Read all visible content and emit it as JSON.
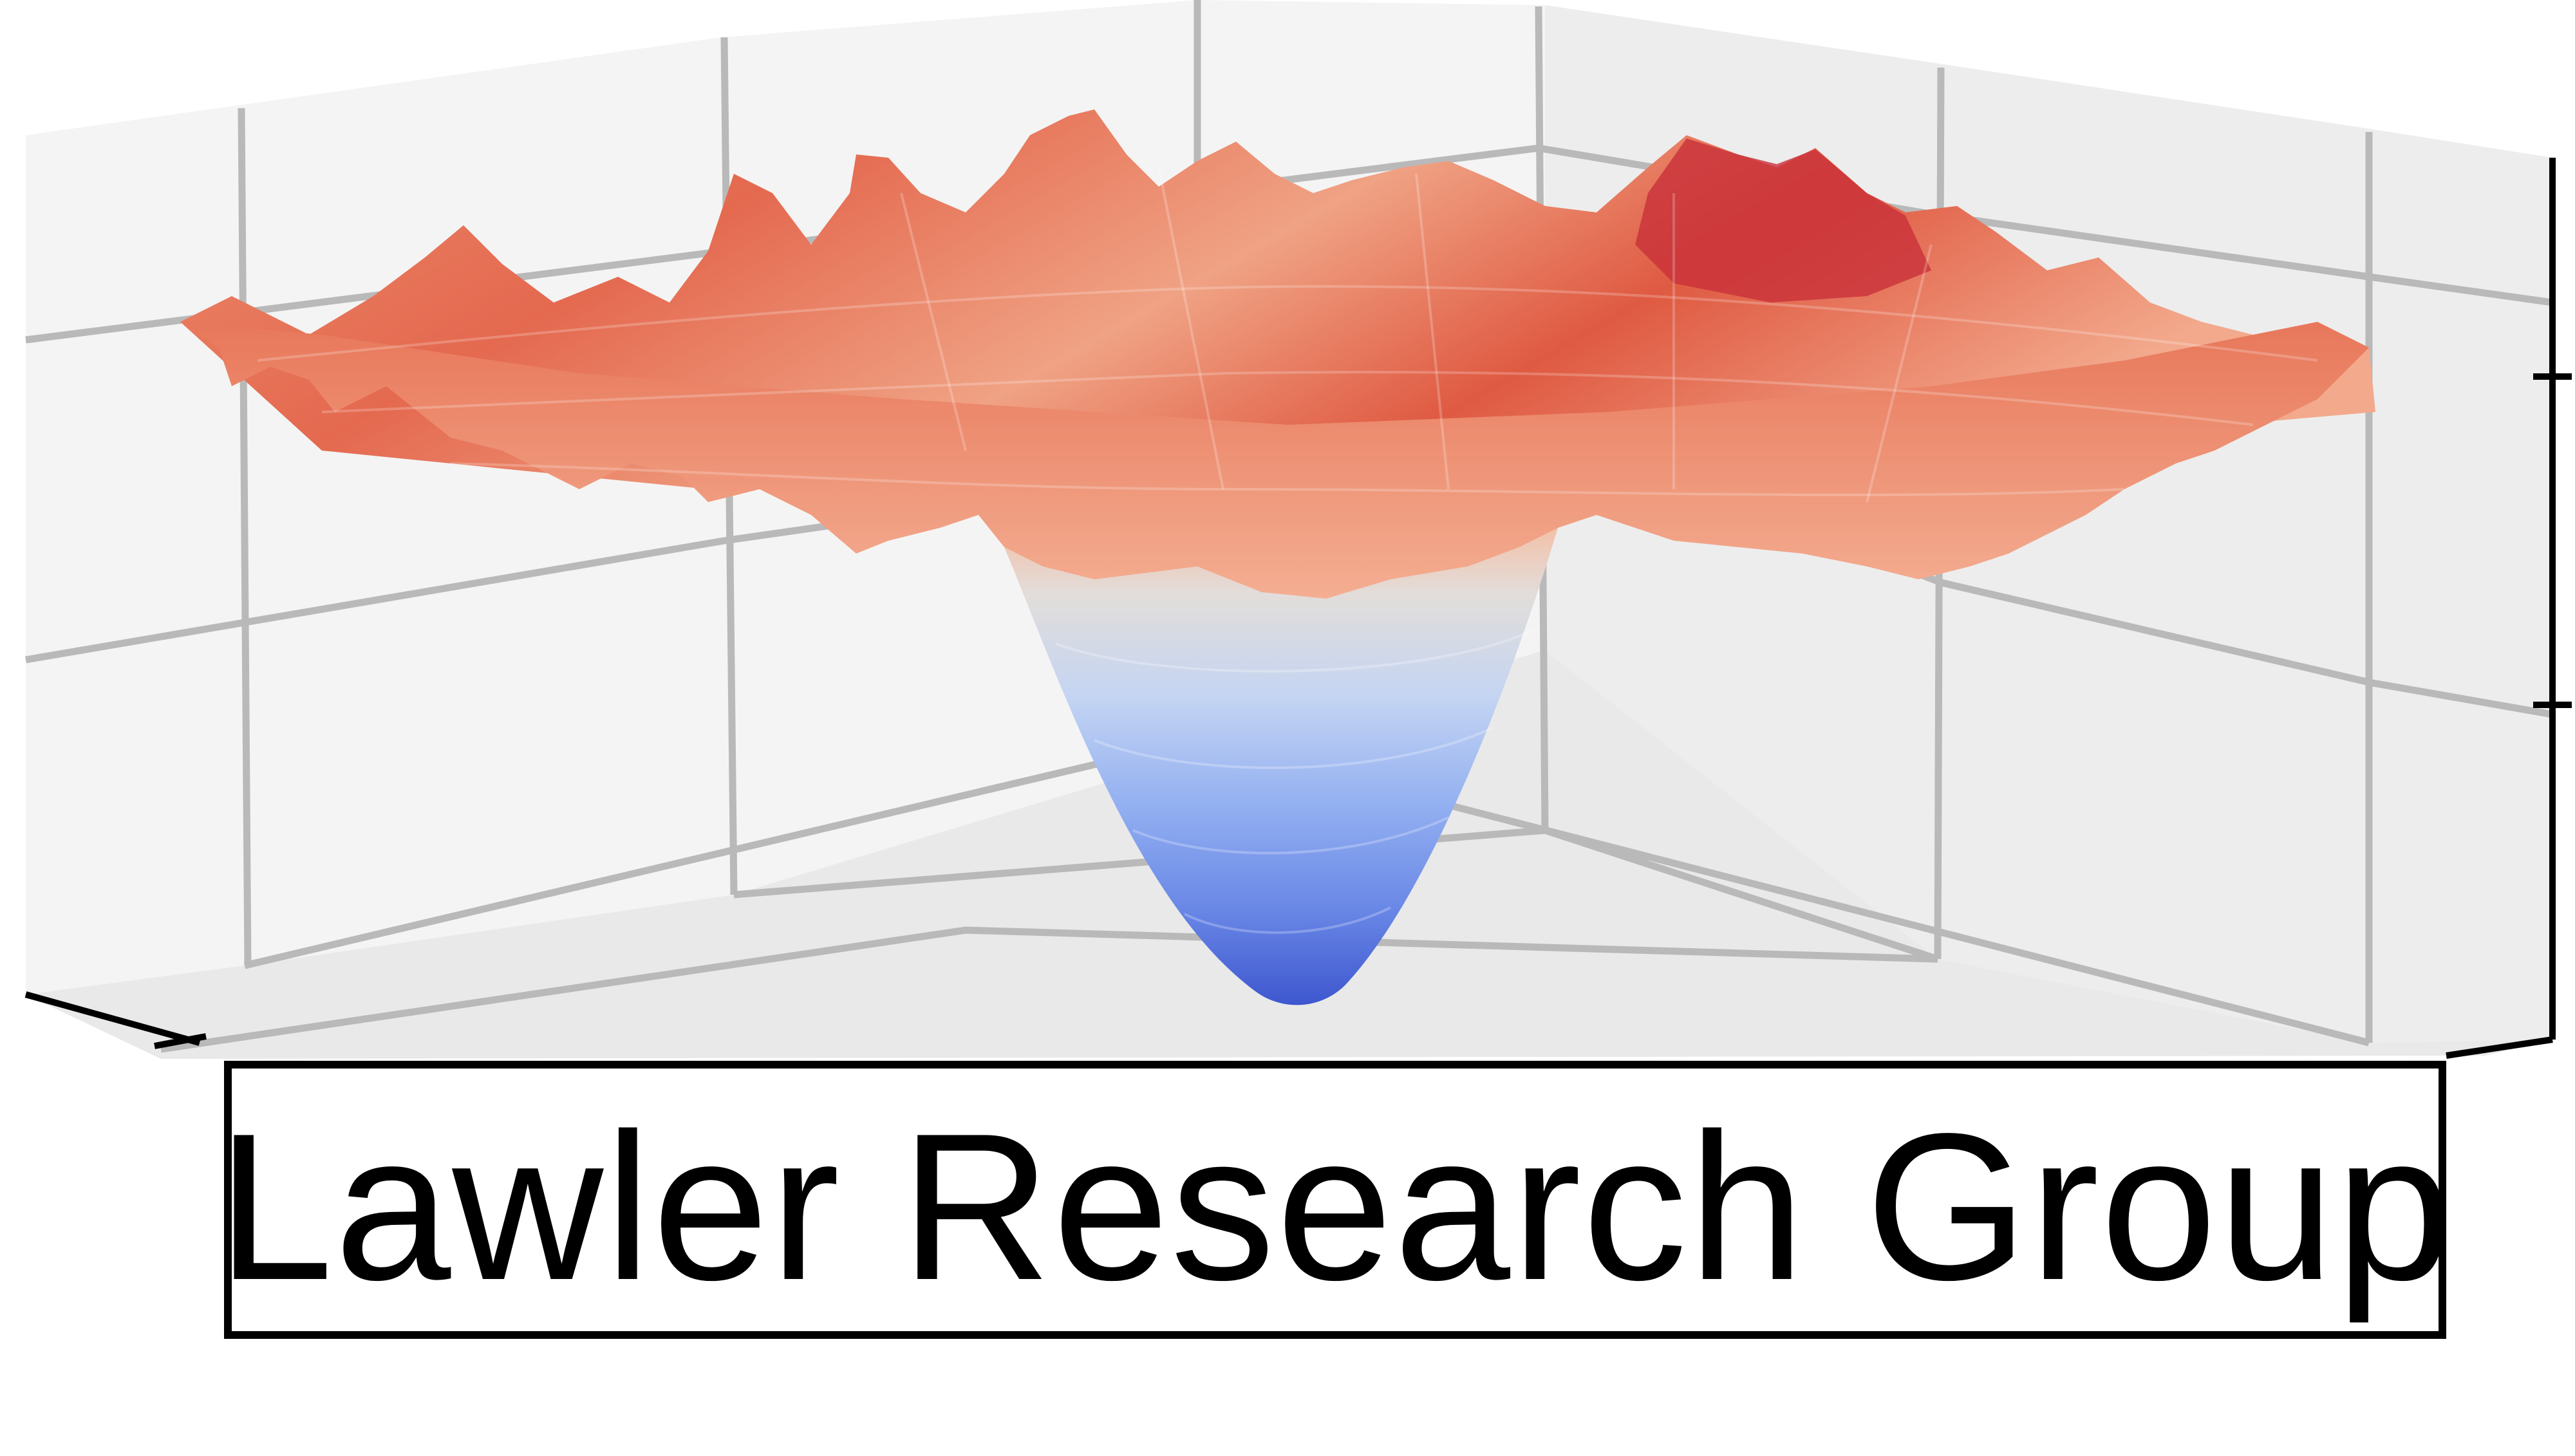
{
  "logo": {
    "group_name": "Lawler Research Group",
    "graphic_icon": "3d-surface-plot-icon",
    "colors": {
      "pane_light": "#f4f4f4",
      "pane_mid": "#ececec",
      "pane_dark": "#e6e6e6",
      "grid": "#b9b9b9",
      "axis": "#000000",
      "surface_red_dark": "#c4282f",
      "surface_red": "#e36a4f",
      "surface_peach": "#f3a386",
      "surface_light": "#f7c6ae",
      "surface_neutral": "#e2ddda",
      "surface_blue_light": "#b7cdf4",
      "surface_blue": "#7f9ff0",
      "surface_blue_dark": "#3e57cf",
      "text": "#000000",
      "border": "#000000"
    }
  }
}
